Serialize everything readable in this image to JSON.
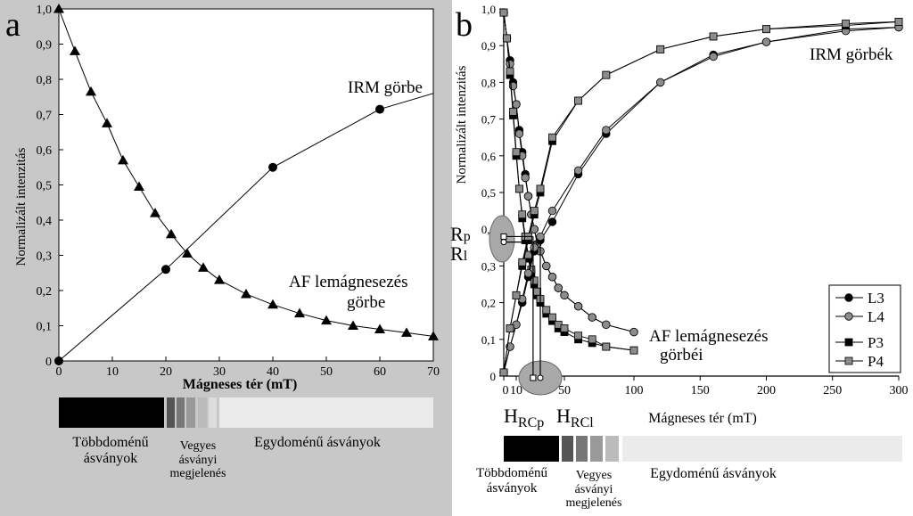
{
  "figure": {
    "panels": {
      "a": {
        "letter": "a",
        "annotations": {
          "irm": "IRM görbe",
          "af_line1": "AF lemágnesezés",
          "af_line2": "görbe"
        },
        "bar_labels": {
          "multi_line1": "Többdoménű",
          "multi_line2": "ásványok",
          "mixed_line1": "Vegyes",
          "mixed_line2": "ásványi",
          "mixed_line3": "megjelenés",
          "single": "Egydoménű ásványok"
        }
      },
      "b": {
        "letter": "b",
        "annotations": {
          "irm": "IRM görbék",
          "af_line1": "AF lemágnesezés",
          "af_line2": "görbéi",
          "rp_base": "R",
          "rp_sub": "p",
          "rl_base": "R",
          "rl_sub": "l",
          "hrcp_base": "H",
          "hrcp_sub": "RCp",
          "hrcl_base": "H",
          "hrcl_sub": "RCl"
        },
        "bar_labels": {
          "multi_line1": "Többdoménű",
          "multi_line2": "ásványok",
          "mixed_line1": "Vegyes",
          "mixed_line2": "ásványi",
          "mixed_line3": "megjelenés",
          "single": "Egydoménű ásványok"
        }
      }
    },
    "colors": {
      "panel_a_background": "#c8c8c8",
      "black_marker": "#000000",
      "gray_marker": "#8c8c8c",
      "ellipse_fill": "#a9a9a9",
      "bar_multi": "#000000",
      "bar_mixed": [
        "#555555",
        "#777777",
        "#999999",
        "#bbbbbb"
      ],
      "bar_single": "#ebebeb"
    }
  },
  "chart_data": [
    {
      "type": "line",
      "panel": "a",
      "xlabel": "Mágneses tér (mT)",
      "ylabel": "Normalizált intenzitás",
      "xlim": [
        0,
        70
      ],
      "ylim": [
        0,
        1.0
      ],
      "xticks": [
        0,
        10,
        20,
        30,
        40,
        50,
        60,
        70
      ],
      "xtick_labels": [
        "0",
        "10",
        "20",
        "30",
        "40",
        "50",
        "60",
        "70"
      ],
      "yticks": [
        0,
        0.1,
        0.2,
        0.3,
        0.4,
        0.5,
        0.6,
        0.7,
        0.8,
        0.9,
        1.0
      ],
      "ytick_labels": [
        "0",
        "0,1",
        "0,2",
        "0,3",
        "0,4",
        "0,5",
        "0,6",
        "0,7",
        "0,8",
        "0,9",
        "1,0"
      ],
      "grid": false,
      "series": [
        {
          "marker": "triangle",
          "color": "#000000",
          "x": [
            0,
            3,
            6,
            9,
            12,
            15,
            18,
            21,
            24,
            27,
            30,
            35,
            40,
            45,
            50,
            55,
            60,
            65,
            70
          ],
          "y": [
            1.0,
            0.88,
            0.765,
            0.675,
            0.57,
            0.495,
            0.42,
            0.36,
            0.305,
            0.265,
            0.23,
            0.19,
            0.16,
            0.135,
            0.115,
            0.1,
            0.09,
            0.08,
            0.07
          ]
        },
        {
          "marker": "circle",
          "color": "#000000",
          "x": [
            0,
            20,
            40,
            60,
            70
          ],
          "y": [
            0,
            0.26,
            0.55,
            0.715,
            0.76
          ],
          "marked": [
            true,
            true,
            true,
            true,
            false
          ]
        }
      ]
    },
    {
      "type": "line",
      "panel": "b",
      "xlabel": "Mágneses tér (mT)",
      "ylabel": "Normalizált intenzitás",
      "xlim": [
        0,
        300
      ],
      "ylim": [
        0,
        1.0
      ],
      "xticks": [
        0,
        10,
        50,
        100,
        150,
        200,
        250,
        300
      ],
      "xtick_labels": [
        "0",
        "10",
        "50",
        "100",
        "150",
        "200",
        "250",
        "300"
      ],
      "yticks": [
        0,
        0.1,
        0.2,
        0.3,
        0.4,
        0.5,
        0.6,
        0.7,
        0.8,
        0.9,
        1.0
      ],
      "ytick_labels": [
        "0",
        "0,1",
        "0,2",
        "0,3",
        "0,4",
        "0,5",
        "0,6",
        "0,7",
        "0,8",
        "0,9",
        "1,0"
      ],
      "grid": false,
      "legend": "bottom-right",
      "series": [
        {
          "name": "L3",
          "marker": "circle",
          "fill": "#000000",
          "kind": "af",
          "x": [
            0,
            2.5,
            5,
            7.5,
            10,
            12.5,
            15,
            17.5,
            20,
            22.5,
            25,
            27.5,
            30,
            35,
            40,
            45,
            50,
            60,
            70,
            80,
            100
          ],
          "y": [
            0.99,
            0.92,
            0.86,
            0.8,
            0.74,
            0.67,
            0.61,
            0.55,
            0.49,
            0.44,
            0.4,
            0.36,
            0.34,
            0.3,
            0.27,
            0.24,
            0.22,
            0.19,
            0.16,
            0.14,
            0.12
          ]
        },
        {
          "name": "L4",
          "marker": "circle",
          "fill": "#8c8c8c",
          "kind": "af",
          "x": [
            0,
            2.5,
            5,
            7.5,
            10,
            12.5,
            15,
            17.5,
            20,
            22.5,
            25,
            27.5,
            30,
            35,
            40,
            45,
            50,
            60,
            70,
            80,
            100
          ],
          "y": [
            0.99,
            0.92,
            0.85,
            0.79,
            0.74,
            0.66,
            0.6,
            0.54,
            0.49,
            0.44,
            0.4,
            0.36,
            0.34,
            0.3,
            0.27,
            0.24,
            0.22,
            0.19,
            0.16,
            0.14,
            0.12
          ]
        },
        {
          "name": "P3",
          "marker": "square",
          "fill": "#000000",
          "kind": "af",
          "x": [
            0,
            2.5,
            5,
            7.5,
            10,
            12.5,
            15,
            17.5,
            20,
            22.5,
            25,
            27.5,
            30,
            35,
            40,
            45,
            50,
            60,
            70,
            80,
            100
          ],
          "y": [
            0.99,
            0.92,
            0.82,
            0.71,
            0.6,
            0.51,
            0.43,
            0.37,
            0.32,
            0.28,
            0.25,
            0.22,
            0.2,
            0.17,
            0.15,
            0.13,
            0.12,
            0.1,
            0.09,
            0.08,
            0.07
          ]
        },
        {
          "name": "P4",
          "marker": "square",
          "fill": "#8c8c8c",
          "kind": "af",
          "x": [
            0,
            2.5,
            5,
            7.5,
            10,
            12.5,
            15,
            17.5,
            20,
            22.5,
            25,
            27.5,
            30,
            35,
            40,
            45,
            50,
            60,
            70,
            80,
            100
          ],
          "y": [
            0.99,
            0.92,
            0.83,
            0.72,
            0.61,
            0.51,
            0.44,
            0.38,
            0.33,
            0.29,
            0.26,
            0.23,
            0.21,
            0.18,
            0.16,
            0.14,
            0.13,
            0.11,
            0.1,
            0.08,
            0.07
          ]
        },
        {
          "name": "L3",
          "marker": "circle",
          "fill": "#000000",
          "kind": "irm",
          "x": [
            0,
            5,
            10,
            15,
            20,
            25,
            30,
            40,
            60,
            80,
            120,
            160,
            200,
            260,
            300
          ],
          "y": [
            0.01,
            0.08,
            0.14,
            0.2,
            0.27,
            0.34,
            0.37,
            0.42,
            0.55,
            0.66,
            0.8,
            0.875,
            0.91,
            0.945,
            0.95
          ]
        },
        {
          "name": "L4",
          "marker": "circle",
          "fill": "#8c8c8c",
          "kind": "irm",
          "x": [
            0,
            5,
            10,
            15,
            20,
            25,
            30,
            40,
            60,
            80,
            120,
            160,
            200,
            260,
            300
          ],
          "y": [
            0.01,
            0.08,
            0.14,
            0.21,
            0.28,
            0.35,
            0.38,
            0.45,
            0.56,
            0.67,
            0.8,
            0.87,
            0.91,
            0.94,
            0.95
          ]
        },
        {
          "name": "P3",
          "marker": "square",
          "fill": "#000000",
          "kind": "irm",
          "x": [
            0,
            5,
            10,
            15,
            20,
            25,
            30,
            40,
            60,
            80,
            120,
            160,
            200,
            260,
            300
          ],
          "y": [
            0.01,
            0.13,
            0.22,
            0.3,
            0.37,
            0.44,
            0.5,
            0.64,
            0.75,
            0.82,
            0.89,
            0.925,
            0.945,
            0.955,
            0.965
          ]
        },
        {
          "name": "P4",
          "marker": "square",
          "fill": "#8c8c8c",
          "kind": "irm",
          "x": [
            0,
            5,
            10,
            15,
            20,
            25,
            30,
            40,
            60,
            80,
            120,
            160,
            200,
            260,
            300
          ],
          "y": [
            0.01,
            0.13,
            0.22,
            0.31,
            0.38,
            0.45,
            0.51,
            0.65,
            0.75,
            0.82,
            0.89,
            0.925,
            0.945,
            0.96,
            0.965
          ]
        }
      ],
      "annotations": {
        "Rp": 0.38,
        "Rl": 0.365,
        "HRCp": 24,
        "HRCl": 30
      }
    }
  ]
}
